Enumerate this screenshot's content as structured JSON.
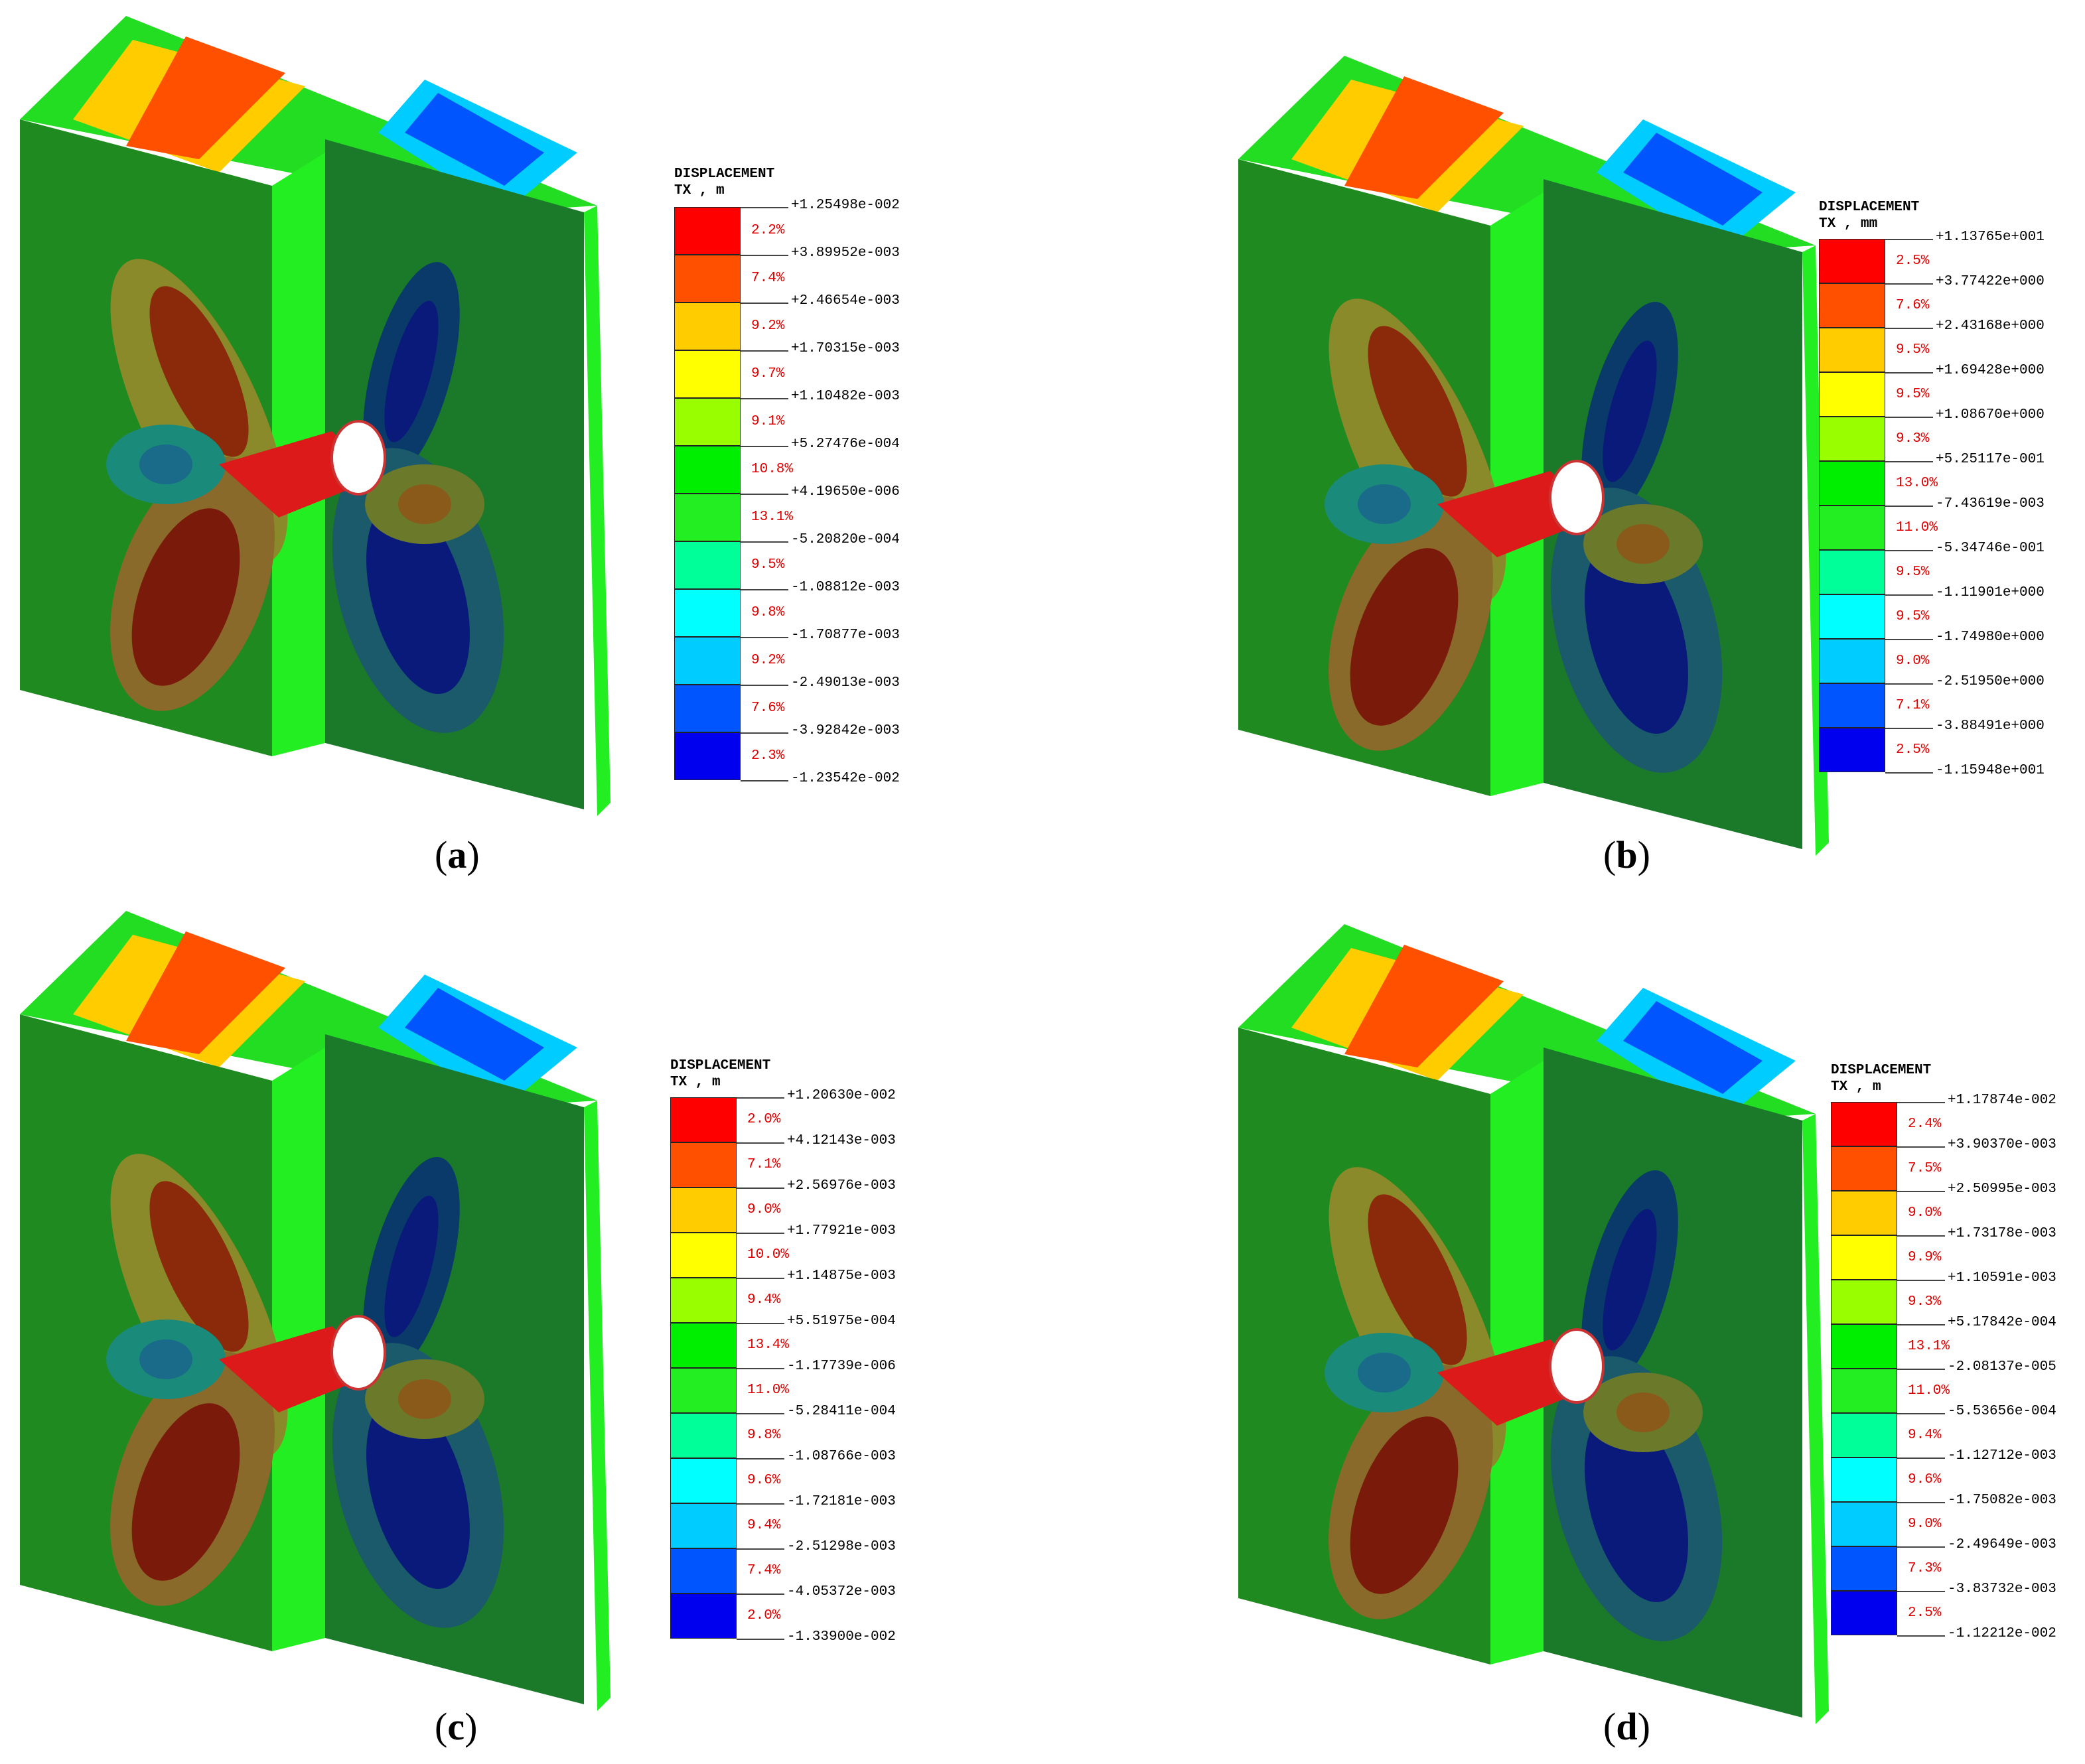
{
  "colors": [
    "#ff0000",
    "#ff5000",
    "#ffcc00",
    "#ffff00",
    "#99ff00",
    "#00ee00",
    "#22ee22",
    "#00ff99",
    "#00ffff",
    "#00ccff",
    "#0055ff",
    "#0000ee"
  ],
  "panels": [
    {
      "caption_letter": "a",
      "legend": {
        "title": "DISPLACEMENT",
        "subtitle": "TX , m",
        "values": [
          "+1.25498e-002",
          "+3.89952e-003",
          "+2.46654e-003",
          "+1.70315e-003",
          "+1.10482e-003",
          "+5.27476e-004",
          "+4.19650e-006",
          "-5.20820e-004",
          "-1.08812e-003",
          "-1.70877e-003",
          "-2.49013e-003",
          "-3.92842e-003",
          "-1.23542e-002"
        ],
        "percents": [
          "2.2%",
          "7.4%",
          "9.2%",
          "9.7%",
          "9.1%",
          "10.8%",
          "13.1%",
          "9.5%",
          "9.8%",
          "9.2%",
          "7.6%",
          "2.3%"
        ]
      }
    },
    {
      "caption_letter": "b",
      "legend": {
        "title": "DISPLACEMENT",
        "subtitle": "TX , mm",
        "values": [
          "+1.13765e+001",
          "+3.77422e+000",
          "+2.43168e+000",
          "+1.69428e+000",
          "+1.08670e+000",
          "+5.25117e-001",
          "-7.43619e-003",
          "-5.34746e-001",
          "-1.11901e+000",
          "-1.74980e+000",
          "-2.51950e+000",
          "-3.88491e+000",
          "-1.15948e+001"
        ],
        "percents": [
          "2.5%",
          "7.6%",
          "9.5%",
          "9.5%",
          "9.3%",
          "13.0%",
          "11.0%",
          "9.5%",
          "9.5%",
          "9.0%",
          "7.1%",
          "2.5%"
        ]
      }
    },
    {
      "caption_letter": "c",
      "legend": {
        "title": "DISPLACEMENT",
        "subtitle": "TX , m",
        "values": [
          "+1.20630e-002",
          "+4.12143e-003",
          "+2.56976e-003",
          "+1.77921e-003",
          "+1.14875e-003",
          "+5.51975e-004",
          "-1.17739e-006",
          "-5.28411e-004",
          "-1.08766e-003",
          "-1.72181e-003",
          "-2.51298e-003",
          "-4.05372e-003",
          "-1.33900e-002"
        ],
        "percents": [
          "2.0%",
          "7.1%",
          "9.0%",
          "10.0%",
          "9.4%",
          "13.4%",
          "11.0%",
          "9.8%",
          "9.6%",
          "9.4%",
          "7.4%",
          "2.0%"
        ]
      }
    },
    {
      "caption_letter": "d",
      "legend": {
        "title": "DISPLACEMENT",
        "subtitle": "TX , m",
        "values": [
          "+1.17874e-002",
          "+3.90370e-003",
          "+2.50995e-003",
          "+1.73178e-003",
          "+1.10591e-003",
          "+5.17842e-004",
          "-2.08137e-005",
          "-5.53656e-004",
          "-1.12712e-003",
          "-1.75082e-003",
          "-2.49649e-003",
          "-3.83732e-003",
          "-1.12212e-002"
        ],
        "percents": [
          "2.4%",
          "7.5%",
          "9.0%",
          "9.9%",
          "9.3%",
          "13.1%",
          "11.0%",
          "9.4%",
          "9.6%",
          "9.0%",
          "7.3%",
          "2.5%"
        ]
      }
    }
  ]
}
